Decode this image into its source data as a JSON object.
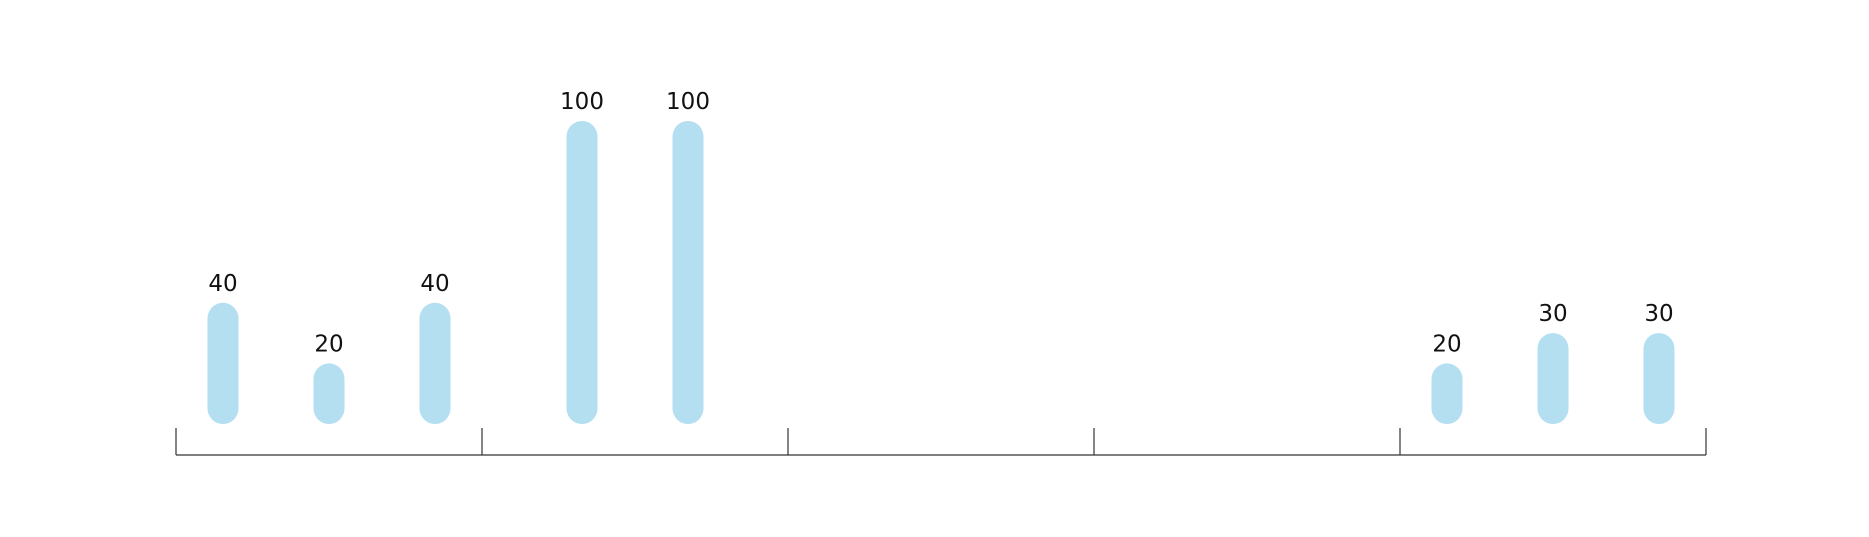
{
  "chart_data": {
    "type": "bar",
    "title": "",
    "xlabel": "",
    "ylabel": "",
    "ylim": [
      0,
      100
    ],
    "grid": false,
    "legend": "none",
    "bar_color": "#b3dff1",
    "axis_color": "#333333",
    "label_color": "#111111",
    "groups": [
      {
        "values": [
          40,
          20,
          40
        ],
        "labels": [
          "40",
          "20",
          "40"
        ]
      },
      {
        "values": [
          100,
          100
        ],
        "labels": [
          "100",
          "100"
        ]
      },
      {
        "values": [],
        "labels": []
      },
      {
        "values": [],
        "labels": []
      },
      {
        "values": [
          20,
          30,
          30
        ],
        "labels": [
          "20",
          "30",
          "30"
        ]
      }
    ]
  }
}
